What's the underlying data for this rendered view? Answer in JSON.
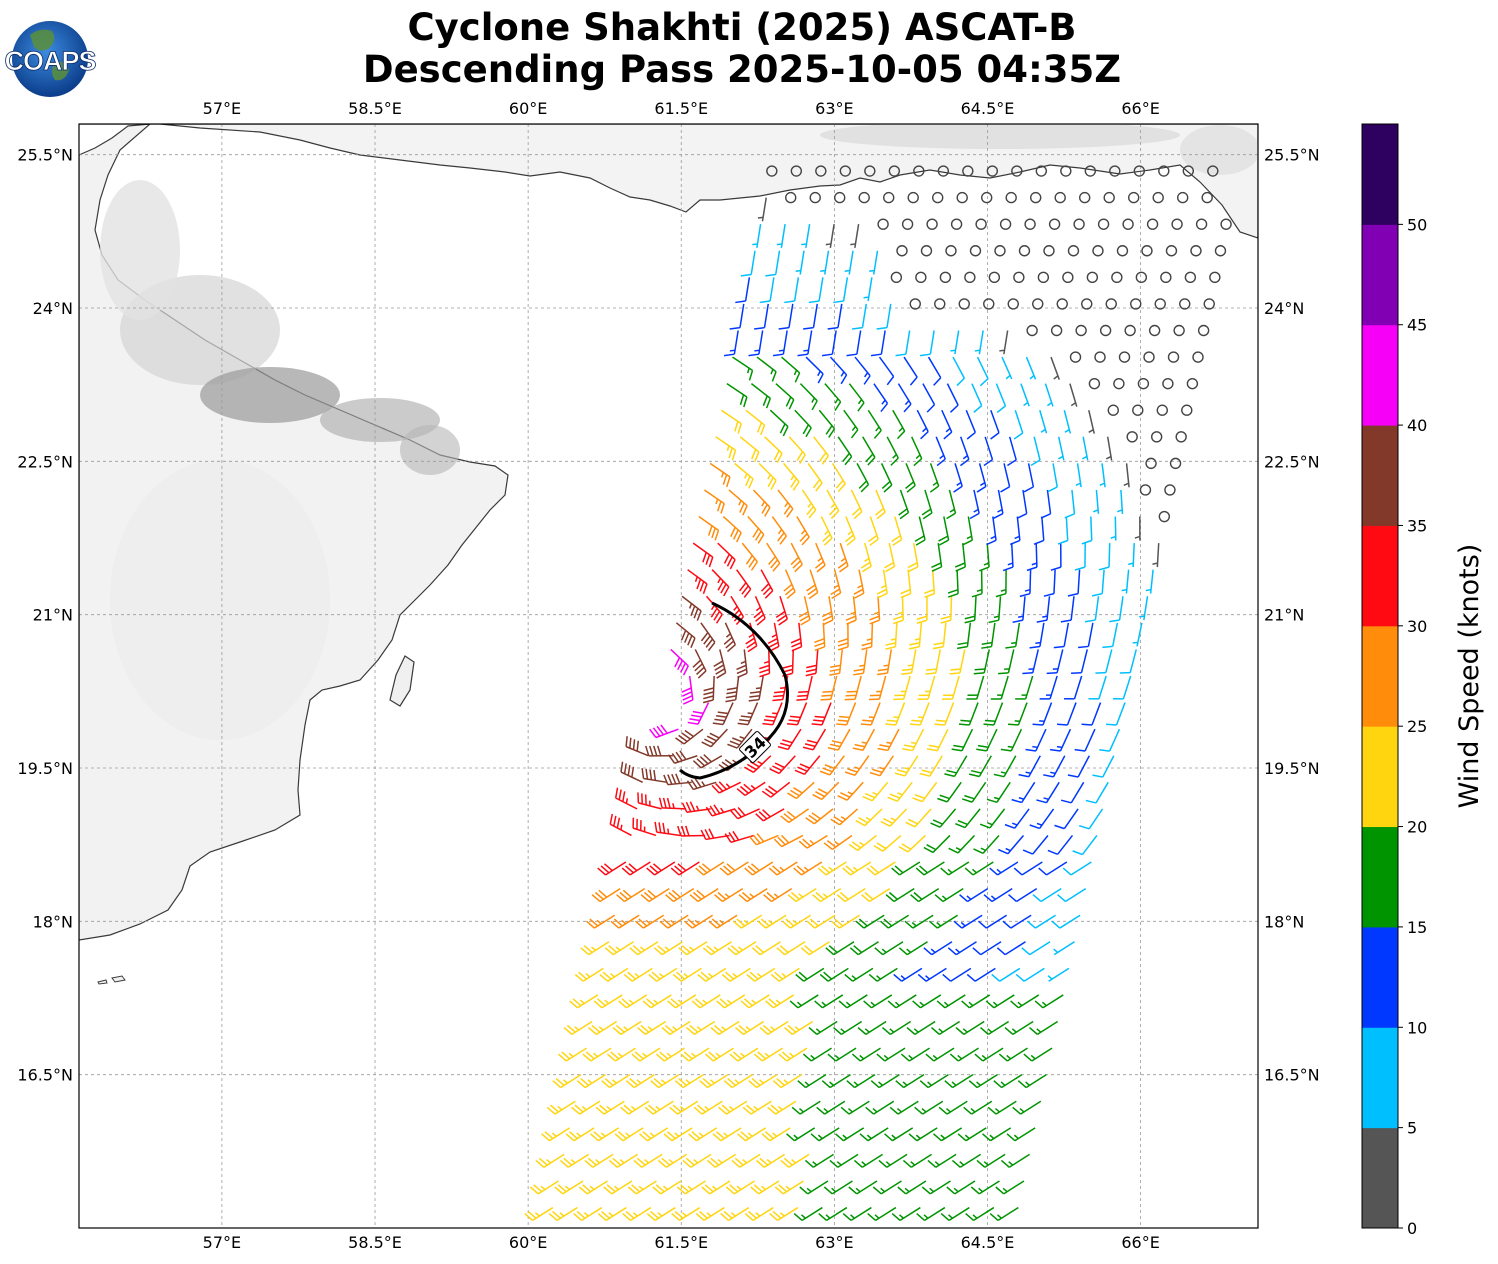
{
  "title_line1": "Cyclone Shakhti (2025) ASCAT-B",
  "title_line2": "Descending Pass 2025-10-05 04:35Z",
  "logo_text": "COAPS",
  "map": {
    "lon_range": [
      55.6,
      67.15
    ],
    "lat_range": [
      15.0,
      25.8
    ],
    "lon_ticks": [
      "57°E",
      "58.5°E",
      "60°E",
      "61.5°E",
      "63°E",
      "64.5°E",
      "66°E"
    ],
    "lat_ticks": [
      "25.5°N",
      "24°N",
      "22.5°N",
      "21°N",
      "19.5°N",
      "18°N",
      "16.5°N"
    ],
    "gridlines": true,
    "contour_label": "34",
    "storm_center": {
      "lon": 61.2,
      "lat": 20.2
    }
  },
  "colorbar": {
    "label": "Wind Speed (knots)",
    "ticks": [
      "0",
      "5",
      "10",
      "15",
      "20",
      "25",
      "30",
      "35",
      "40",
      "45",
      "50"
    ],
    "colors": [
      "#555555",
      "#00bfff",
      "#0038ff",
      "#009400",
      "#ffd510",
      "#ff8c0a",
      "#ff0a12",
      "#83392a",
      "#f700f7",
      "#8200b4",
      "#2e005f"
    ]
  }
}
